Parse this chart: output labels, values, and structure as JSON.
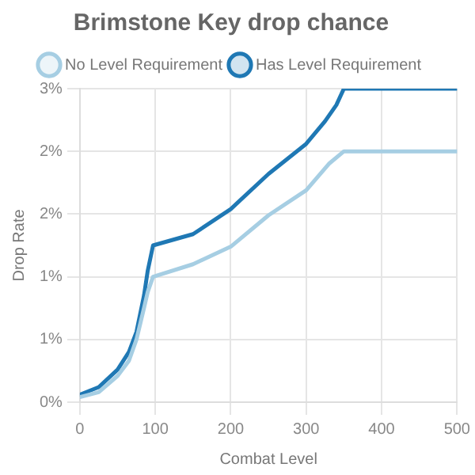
{
  "chart_data": {
    "type": "line",
    "title": "Brimstone Key drop chance",
    "xlabel": "Combat Level",
    "ylabel": "Drop Rate",
    "xlim": [
      0,
      500
    ],
    "xticks": [
      0,
      100,
      200,
      300,
      400,
      500
    ],
    "ylim": [
      0,
      2.5
    ],
    "yticks": [
      {
        "value": 0,
        "label": "0%"
      },
      {
        "value": 0.5,
        "label": "1%"
      },
      {
        "value": 1,
        "label": "1%"
      },
      {
        "value": 1.5,
        "label": "2%"
      },
      {
        "value": 2,
        "label": "2%"
      },
      {
        "value": 2.5,
        "label": "3%"
      }
    ],
    "grid": true,
    "legend": "top",
    "marker": "none",
    "line_style": "solid",
    "series": [
      {
        "name": "No Level Requirement",
        "color": "#a6cee3",
        "x": [
          0,
          25,
          50,
          65,
          75,
          85,
          90,
          97,
          150,
          200,
          250,
          300,
          330,
          350,
          500
        ],
        "values": [
          0.04,
          0.08,
          0.21,
          0.33,
          0.5,
          0.75,
          0.88,
          1.0,
          1.1,
          1.24,
          1.49,
          1.69,
          1.9,
          2.0,
          2.0
        ]
      },
      {
        "name": "Has Level Requirement",
        "color": "#1f78b4",
        "x": [
          0,
          25,
          50,
          65,
          75,
          85,
          90,
          97,
          150,
          200,
          250,
          300,
          325,
          340,
          350,
          500
        ],
        "values": [
          0.06,
          0.12,
          0.26,
          0.4,
          0.56,
          0.85,
          1.05,
          1.25,
          1.34,
          1.54,
          1.82,
          2.06,
          2.24,
          2.37,
          2.5,
          2.5
        ]
      }
    ]
  }
}
